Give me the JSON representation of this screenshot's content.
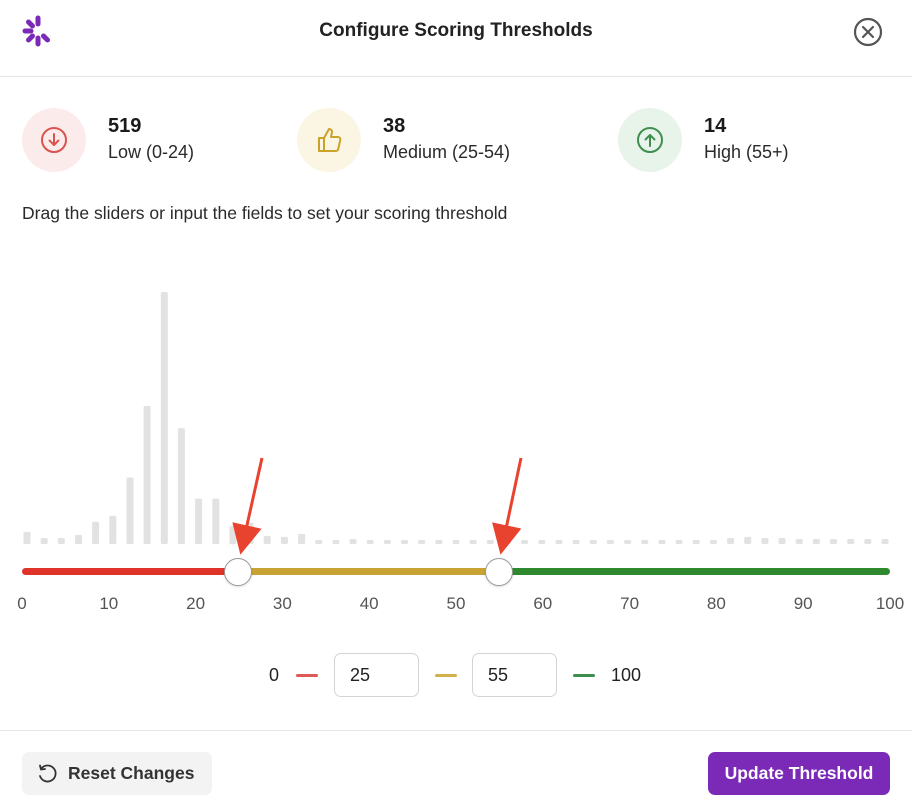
{
  "header": {
    "title": "Configure Scoring Thresholds",
    "logo_icon": "brand-logo-icon",
    "close_icon": "close-circle-icon"
  },
  "stats": [
    {
      "count": "519",
      "label": "Low (0-24)",
      "icon": "arrow-down-circle-icon",
      "color": "#d9534f",
      "bg": "#fbeceb"
    },
    {
      "count": "38",
      "label": "Medium (25-54)",
      "icon": "thumbs-up-icon",
      "color": "#c9a227",
      "bg": "#fbf5e4"
    },
    {
      "count": "14",
      "label": "High (55+)",
      "icon": "arrow-up-circle-icon",
      "color": "#3e8f4f",
      "bg": "#e8f4ea"
    }
  ],
  "instructions": "Drag the sliders or input the fields to set your scoring threshold",
  "slider": {
    "min": 0,
    "max": 100,
    "low_threshold": 25,
    "high_threshold": 55,
    "ticks": [
      "0",
      "10",
      "20",
      "30",
      "40",
      "50",
      "60",
      "70",
      "80",
      "90",
      "100"
    ],
    "colors": {
      "low": "#e0342b",
      "medium": "#c6a332",
      "high": "#2f8a2f"
    }
  },
  "histogram": {
    "bar_color": "#e2e2e2",
    "relative_heights": [
      0.048,
      0.024,
      0.024,
      0.036,
      0.088,
      0.112,
      0.264,
      0.548,
      1.0,
      0.46,
      0.18,
      0.18,
      0.072,
      0.084,
      0.032,
      0.028,
      0.04,
      0.016,
      0.016,
      0.02,
      0.016,
      0.016,
      0.016,
      0.016,
      0.016,
      0.016,
      0.016,
      0.016,
      0.016,
      0.016,
      0.016,
      0.016,
      0.016,
      0.016,
      0.016,
      0.016,
      0.016,
      0.016,
      0.016,
      0.016,
      0.016,
      0.024,
      0.028,
      0.024,
      0.024,
      0.02,
      0.02,
      0.02,
      0.02,
      0.02,
      0.02
    ]
  },
  "inputs": {
    "min_label": "0",
    "low_value": "25",
    "high_value": "55",
    "max_label": "100"
  },
  "footer": {
    "reset_label": "Reset Changes",
    "reset_icon": "undo-icon",
    "update_label": "Update Threshold",
    "accent": "#7b2ab8"
  },
  "annotation": {
    "arrow_color": "#e8432f"
  }
}
